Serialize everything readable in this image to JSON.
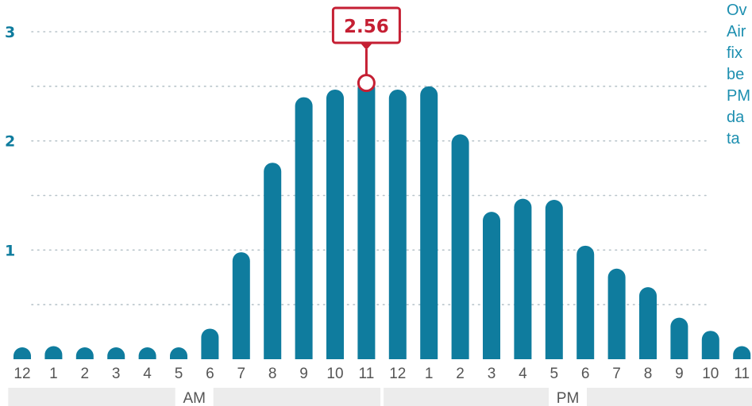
{
  "chart_data": {
    "type": "bar",
    "categories": [
      "12",
      "1",
      "2",
      "3",
      "4",
      "5",
      "6",
      "7",
      "8",
      "9",
      "10",
      "11",
      "12",
      "1",
      "2",
      "3",
      "4",
      "5",
      "6",
      "7",
      "8",
      "9",
      "10",
      "11"
    ],
    "values": [
      0.08,
      0.12,
      0.03,
      0.0,
      0.0,
      0.09,
      0.28,
      0.98,
      1.8,
      2.4,
      2.47,
      2.56,
      2.47,
      2.5,
      2.06,
      1.35,
      1.47,
      1.46,
      1.04,
      0.83,
      0.66,
      0.38,
      0.26,
      0.12
    ],
    "y_ticks": [
      {
        "value": 1,
        "label": "1"
      },
      {
        "value": 2,
        "label": "2"
      },
      {
        "value": 3,
        "label": "3"
      }
    ],
    "grid_values": [
      0.5,
      1,
      1.5,
      2,
      2.5,
      3
    ],
    "ylim": [
      0,
      3
    ],
    "highlight": {
      "index": 11,
      "label": "2.56"
    },
    "period_bands": [
      {
        "label": "AM",
        "start_index": 0,
        "end_index": 11
      },
      {
        "label": "PM",
        "start_index": 12,
        "end_index": 23
      }
    ],
    "title": "",
    "xlabel": "",
    "ylabel": ""
  },
  "side_note": {
    "lines": [
      "Ov",
      "Air",
      "fix",
      "be",
      "PM",
      "da",
      "ta"
    ]
  },
  "colors": {
    "bar": "#0f7c9e",
    "highlight": "#c51f33",
    "note_text": "#1d8fb0",
    "band": "#ececec"
  }
}
